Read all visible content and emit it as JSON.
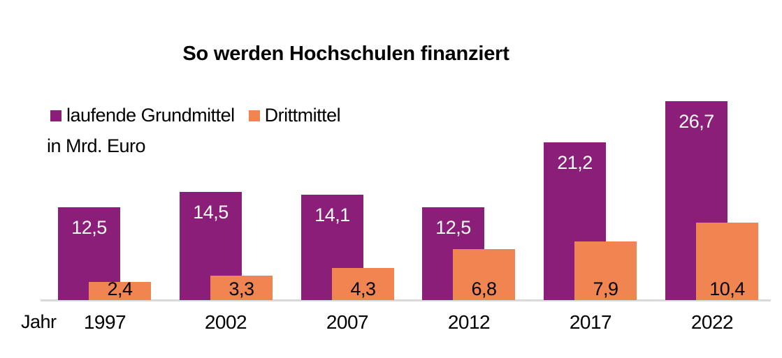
{
  "title": "So werden Hochschulen finanziert",
  "unit_label": "in Mrd. Euro",
  "x_axis_label": "Jahr",
  "legend": [
    {
      "label": "laufende Grundmittel",
      "color": "#8B1E78"
    },
    {
      "label": "Drittmittel",
      "color": "#F08552"
    }
  ],
  "colors": {
    "grundmittel": "#8B1E78",
    "drittmittel": "#F08552",
    "axis_line": "#D9D9D9",
    "background": "#FFFFFF",
    "text": "#000000",
    "label_on_grundmittel": "#FFFFFF",
    "label_on_drittmittel": "#000000"
  },
  "chart_data": {
    "type": "bar",
    "title": "So werden Hochschulen finanziert",
    "xlabel": "Jahr",
    "ylabel": "in Mrd. Euro",
    "categories": [
      "1997",
      "2002",
      "2007",
      "2012",
      "2017",
      "2022"
    ],
    "series": [
      {
        "name": "laufende Grundmittel",
        "color": "#8B1E78",
        "values": [
          12.5,
          14.5,
          14.1,
          12.5,
          21.2,
          26.7
        ],
        "labels": [
          "12,5",
          "14,5",
          "14,1",
          "12,5",
          "21,2",
          "26,7"
        ],
        "label_color": "#FFFFFF"
      },
      {
        "name": "Drittmittel",
        "color": "#F08552",
        "values": [
          2.4,
          3.3,
          4.3,
          6.8,
          7.9,
          10.4
        ],
        "labels": [
          "2,4",
          "3,3",
          "4,3",
          "6,8",
          "7,9",
          "10,4"
        ],
        "label_color": "#000000"
      }
    ],
    "ylim": [
      0,
      28
    ],
    "grid": false,
    "legend_position": "top-left",
    "value_format": "decimal-comma",
    "bar_overlap": "second series drawn in front, offset half a bar width"
  }
}
